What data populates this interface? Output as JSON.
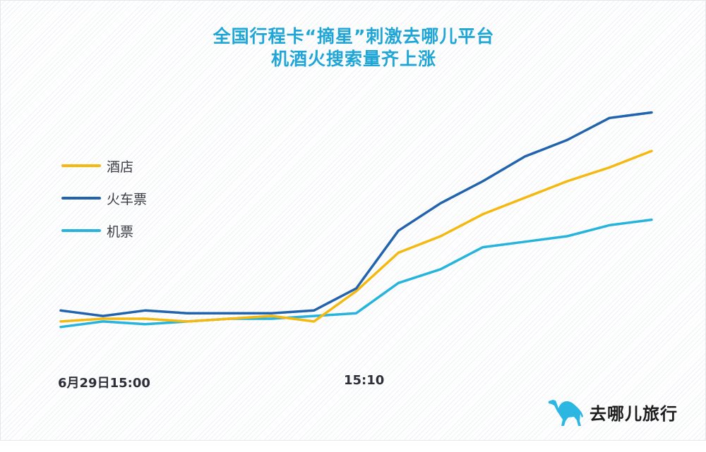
{
  "title": {
    "line1": "全国行程卡“摘星”刺激去哪儿平台",
    "line2": "机酒火搜索量齐上涨"
  },
  "legend": [
    {
      "label": "酒店",
      "color": "#f5b80f"
    },
    {
      "label": "火车票",
      "color": "#2263ad"
    },
    {
      "label": "机票",
      "color": "#27b4dc"
    }
  ],
  "x_axis": {
    "ticks": [
      "6月29日15:00",
      "15:10"
    ]
  },
  "logo": {
    "text": "去哪儿旅行",
    "icon": "camel-icon",
    "color": "#2cb7e3"
  },
  "chart_data": {
    "type": "line",
    "title": "全国行程卡“摘星”刺激去哪儿平台机酒火搜索量齐上涨",
    "xlabel": "",
    "ylabel": "",
    "x_tick_labels": [
      "6月29日15:00",
      "15:10"
    ],
    "x": [
      0,
      1,
      2,
      3,
      4,
      5,
      6,
      7,
      8,
      9,
      10,
      11,
      12,
      13,
      14
    ],
    "x_note": "15 sample points; index 0 = 6月29日15:00, index 7 = 15:10 (relative search volume, no y-axis shown)",
    "series": [
      {
        "name": "酒店",
        "color": "#f5b80f",
        "values": [
          9,
          10,
          10,
          9,
          10,
          11,
          9,
          20,
          34,
          40,
          48,
          54,
          60,
          65,
          71
        ]
      },
      {
        "name": "火车票",
        "color": "#2263ad",
        "values": [
          13,
          11,
          13,
          12,
          12,
          12,
          13,
          21,
          42,
          52,
          60,
          69,
          75,
          83,
          85
        ]
      },
      {
        "name": "机票",
        "color": "#27b4dc",
        "values": [
          7,
          9,
          8,
          9,
          10,
          10,
          11,
          12,
          23,
          28,
          36,
          38,
          40,
          44,
          46
        ]
      }
    ],
    "grid": false,
    "legend_position": "upper-left",
    "ylim": [
      0,
      100
    ]
  }
}
